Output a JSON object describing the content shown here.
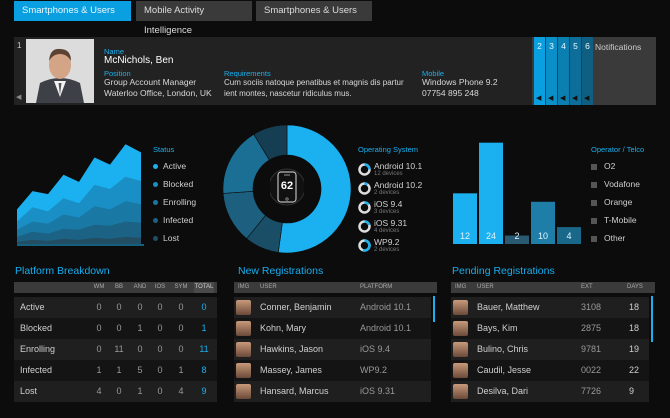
{
  "tabs": [
    {
      "label": "Smartphones & Users",
      "active": true
    },
    {
      "label": "Mobile Activity Intelligence",
      "active": false
    },
    {
      "label": "Smartphones & Users",
      "active": false
    }
  ],
  "profile": {
    "index": "1",
    "name_label": "Name",
    "name": "McNichols, Ben",
    "position_label": "Position",
    "position_line1": "Group Account Manager",
    "position_line2": "Waterloo Office, London, UK",
    "requirements_label": "Requirements",
    "requirements_line1": "Cum sociis natoque penatibus et magnis dis partur",
    "requirements_line2": "ient montes, nascetur ridiculus mus.",
    "mobile_label": "Mobile",
    "mobile_device": "Windows Phone 9.2",
    "mobile_number": "07754 895 248"
  },
  "notifications": {
    "label": "Notifications",
    "tabs": [
      "2",
      "3",
      "4",
      "5",
      "6"
    ]
  },
  "status": {
    "title": "Status",
    "items": [
      "Active",
      "Blocked",
      "Enrolling",
      "Infected",
      "Lost"
    ]
  },
  "device_count": "62",
  "os": {
    "title": "Operating System",
    "items": [
      {
        "name": "Android 10.1",
        "sub": "12 devices",
        "fraction": 0.25
      },
      {
        "name": "Android 10.2",
        "sub": "2 devices",
        "fraction": 0.1
      },
      {
        "name": "iOS 9.4",
        "sub": "3 devices",
        "fraction": 0.15
      },
      {
        "name": "iOS 9.31",
        "sub": "4 devices",
        "fraction": 0.2
      },
      {
        "name": "WP9.2",
        "sub": "2 devices",
        "fraction": 0.55
      }
    ]
  },
  "operator": {
    "title": "Operator / Telco",
    "items": [
      "O2",
      "Vodafone",
      "Orange",
      "T-Mobile",
      "Other"
    ]
  },
  "chart_data": [
    {
      "type": "area",
      "title": "Status",
      "series": [
        {
          "name": "Active",
          "values": [
            34,
            52,
            49,
            68,
            61,
            85,
            78,
            98,
            90
          ]
        },
        {
          "name": "Blocked",
          "values": [
            22,
            36,
            32,
            45,
            40,
            58,
            54,
            66,
            62
          ]
        },
        {
          "name": "Enrolling",
          "values": [
            14,
            22,
            20,
            29,
            26,
            37,
            34,
            42,
            39
          ]
        },
        {
          "name": "Infected",
          "values": [
            7,
            12,
            10,
            15,
            14,
            19,
            18,
            22,
            21
          ]
        },
        {
          "name": "Lost",
          "values": [
            2,
            4,
            3,
            5,
            4,
            6,
            5,
            7,
            6
          ]
        }
      ],
      "ylim": [
        0,
        110
      ]
    },
    {
      "type": "pie",
      "title": "Operating System",
      "categories": [
        "Android 10.1",
        "Android 10.2",
        "iOS 9.4",
        "iOS 9.31",
        "WP9.2"
      ],
      "values": [
        12,
        2,
        3,
        4,
        2
      ]
    },
    {
      "type": "bar",
      "title": "Operator / Telco",
      "categories": [
        "",
        "",
        "",
        "",
        ""
      ],
      "values": [
        12,
        24,
        2,
        10,
        4
      ],
      "ylim": [
        0,
        27
      ],
      "colors": [
        "#1bb0ef",
        "#1bb0ef",
        "#2a5a72",
        "#1f7ea8",
        "#1a6889"
      ]
    }
  ],
  "platform": {
    "title": "Platform Breakdown",
    "headers": [
      "WM",
      "BB",
      "AND",
      "IOS",
      "SYM",
      "TOTAL"
    ],
    "rows": [
      {
        "label": "Active",
        "values": [
          "0",
          "0",
          "0",
          "0",
          "0",
          "0"
        ]
      },
      {
        "label": "Blocked",
        "values": [
          "0",
          "0",
          "1",
          "0",
          "0",
          "1"
        ]
      },
      {
        "label": "Enrolling",
        "values": [
          "0",
          "11",
          "0",
          "0",
          "0",
          "11"
        ]
      },
      {
        "label": "Infected",
        "values": [
          "1",
          "1",
          "5",
          "0",
          "1",
          "8"
        ]
      },
      {
        "label": "Lost",
        "values": [
          "4",
          "0",
          "1",
          "0",
          "4",
          "9"
        ]
      }
    ]
  },
  "new_registrations": {
    "title": "New Registrations",
    "headers": [
      "IMG",
      "USER",
      "PLATFORM"
    ],
    "rows": [
      {
        "user": "Conner, Benjamin",
        "platform": "Android 10.1"
      },
      {
        "user": "Kohn, Mary",
        "platform": "Android 10.1"
      },
      {
        "user": "Hawkins, Jason",
        "platform": "iOS 9.4"
      },
      {
        "user": "Massey, James",
        "platform": "WP9.2"
      },
      {
        "user": "Hansard, Marcus",
        "platform": "iOS 9.31"
      }
    ]
  },
  "pending_registrations": {
    "title": "Pending Registrations",
    "headers": [
      "IMG",
      "USER",
      "EXT",
      "DAYS"
    ],
    "rows": [
      {
        "user": "Bauer, Matthew",
        "ext": "3108",
        "days": "18"
      },
      {
        "user": "Bays, Kim",
        "ext": "2875",
        "days": "18"
      },
      {
        "user": "Bulino, Chris",
        "ext": "9781",
        "days": "19"
      },
      {
        "user": "Caudil, Jesse",
        "ext": "0022",
        "days": "22"
      },
      {
        "user": "Desilva, Dari",
        "ext": "7726",
        "days": "9"
      }
    ]
  },
  "colors": {
    "accent": "#1bb0ef",
    "background": "#0c0c0c"
  }
}
